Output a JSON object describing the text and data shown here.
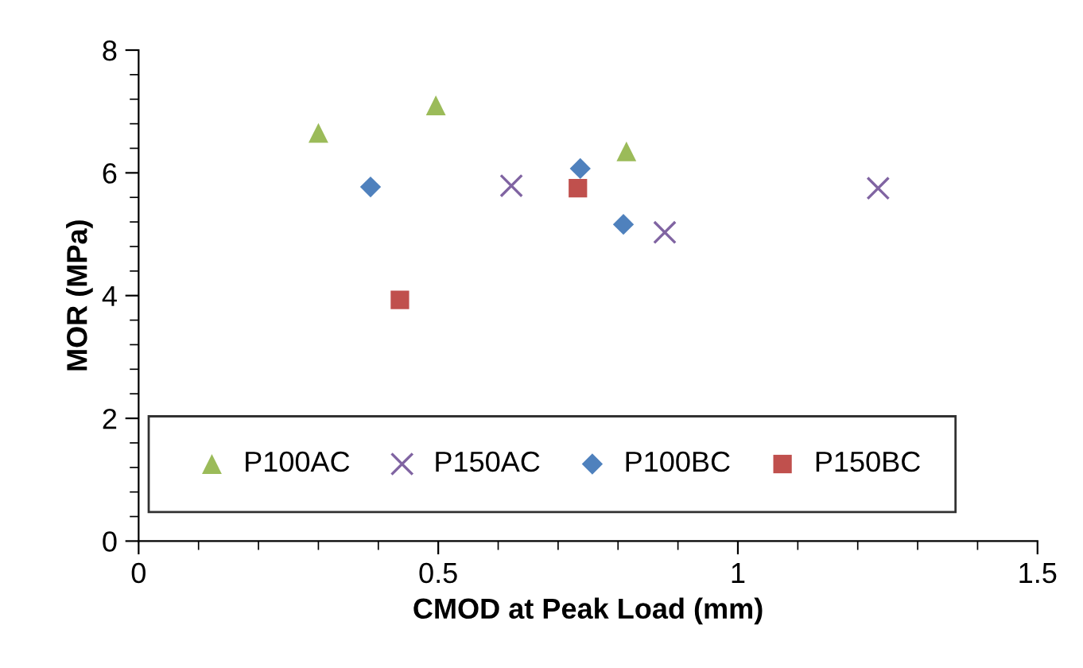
{
  "chart_data": {
    "type": "scatter",
    "xlabel": "CMOD at Peak Load (mm)",
    "ylabel": "MOR (MPa)",
    "xlim": [
      0,
      1.5
    ],
    "xticks": [
      0,
      0.5,
      1,
      1.5
    ],
    "ylim": [
      0,
      8
    ],
    "yticks": [
      0,
      2,
      4,
      6,
      8
    ],
    "grid": false,
    "legend": "bottom",
    "series": [
      {
        "name": "P100AC",
        "color": "#9bbb59",
        "marker": "triangle",
        "x": [
          0.3,
          0.496,
          0.814
        ],
        "values": [
          6.65,
          7.1,
          6.35
        ]
      },
      {
        "name": "P150AC",
        "color": "#8064a2",
        "marker": "cross",
        "x": [
          0.622,
          0.878,
          1.234
        ],
        "values": [
          5.79,
          5.03,
          5.75
        ]
      },
      {
        "name": "P100BC",
        "color": "#4f81bd",
        "marker": "diamond",
        "x": [
          0.387,
          0.737,
          0.809
        ],
        "values": [
          5.77,
          6.07,
          5.16
        ]
      },
      {
        "name": "P150BC",
        "color": "#c0504d",
        "marker": "square",
        "x": [
          0.436,
          0.733
        ],
        "values": [
          3.93,
          5.75
        ]
      }
    ]
  }
}
